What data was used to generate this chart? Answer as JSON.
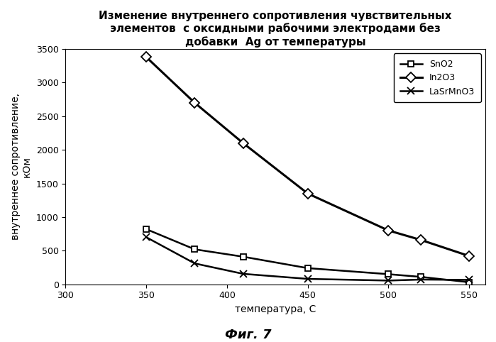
{
  "title_line1": "Изменение внутреннего сопротивления чувствительных",
  "title_line2": "элементов  с оксидными рабочими электродами без",
  "title_line3": "добавки  Ag от температуры",
  "xlabel": "температура, С",
  "ylabel_top": "внутреннее сопротивление,",
  "ylabel_bottom": "кОм",
  "figcaption": "Фиг. 7",
  "xlim": [
    300,
    560
  ],
  "ylim": [
    0,
    3500
  ],
  "xticks": [
    300,
    350,
    400,
    450,
    500,
    550
  ],
  "yticks": [
    0,
    500,
    1000,
    1500,
    2000,
    2500,
    3000,
    3500
  ],
  "series": [
    {
      "label": "SnO2",
      "x": [
        350,
        380,
        410,
        450,
        500,
        520,
        550
      ],
      "y": [
        820,
        520,
        410,
        240,
        150,
        110,
        30
      ],
      "marker": "s",
      "color": "#000000",
      "linestyle": "-",
      "linewidth": 1.8,
      "markersize": 6,
      "markerfacecolor": "white"
    },
    {
      "label": "In2O3",
      "x": [
        350,
        380,
        410,
        450,
        500,
        520,
        550
      ],
      "y": [
        3380,
        2700,
        2100,
        1350,
        800,
        660,
        420
      ],
      "marker": "D",
      "color": "#000000",
      "linestyle": "-",
      "linewidth": 2.2,
      "markersize": 7,
      "markerfacecolor": "white"
    },
    {
      "label": "LaSrMnO3",
      "x": [
        350,
        380,
        410,
        450,
        500,
        520,
        550
      ],
      "y": [
        700,
        310,
        155,
        80,
        55,
        70,
        65
      ],
      "marker": "x",
      "color": "#000000",
      "linestyle": "-",
      "linewidth": 1.8,
      "markersize": 7,
      "markerfacecolor": "black"
    }
  ],
  "background_color": "#ffffff",
  "title_fontsize": 11,
  "label_fontsize": 10,
  "tick_fontsize": 9,
  "caption_fontsize": 13,
  "legend_fontsize": 9
}
